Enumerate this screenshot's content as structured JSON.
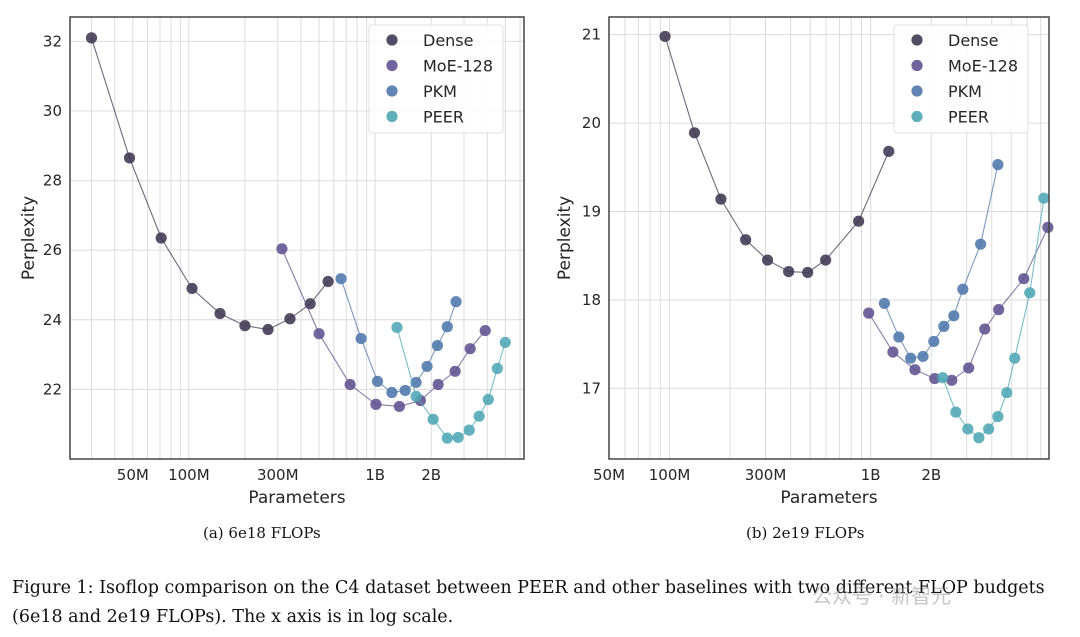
{
  "figure": {
    "caption_label": "Figure 1:",
    "caption_text": "Isoflop comparison on the C4 dataset between PEER and other baselines with two different FLOP budgets (6e18 and 2e19 FLOPs). The x axis is in log scale.",
    "watermark": "公众号 · 新智元"
  },
  "colors": {
    "Dense": "#3f3851",
    "MoE-128": "#5e528f",
    "PKM": "#4f77ab",
    "PEER": "#4ea7b5"
  },
  "chart_data": [
    {
      "type": "line",
      "subcaption": "(a) 6e18 FLOPs",
      "xlabel": "Parameters",
      "ylabel": "Perplexity",
      "xscale": "log",
      "xlim_params_M": [
        23,
        6300
      ],
      "ylim": [
        20.0,
        32.7
      ],
      "xticks": [
        {
          "value_M": 50,
          "label": "50M"
        },
        {
          "value_M": 100,
          "label": "100M"
        },
        {
          "value_M": 300,
          "label": "300M"
        },
        {
          "value_M": 1000,
          "label": "1B"
        },
        {
          "value_M": 2000,
          "label": "2B"
        }
      ],
      "yticks": [
        22,
        24,
        26,
        28,
        30,
        32
      ],
      "grid": true,
      "legend_position": "top-right",
      "legend": [
        "Dense",
        "MoE-128",
        "PKM",
        "PEER"
      ],
      "series": [
        {
          "name": "Dense",
          "params_M": [
            30,
            48,
            71,
            104,
            147,
            200,
            266,
            349,
            448,
            559
          ],
          "perplexity": [
            32.1,
            28.65,
            26.35,
            24.9,
            24.18,
            23.83,
            23.72,
            24.03,
            24.46,
            25.1
          ]
        },
        {
          "name": "MoE-128",
          "params_M": [
            316,
            500,
            734,
            1010,
            1350,
            1750,
            2180,
            2690,
            3240,
            3900
          ],
          "perplexity": [
            26.04,
            23.6,
            22.14,
            21.57,
            21.51,
            21.68,
            22.14,
            22.52,
            23.17,
            23.69
          ]
        },
        {
          "name": "PKM",
          "params_M": [
            656,
            841,
            1030,
            1230,
            1450,
            1660,
            1900,
            2160,
            2440,
            2720
          ],
          "perplexity": [
            25.18,
            23.46,
            22.23,
            21.91,
            21.97,
            22.2,
            22.66,
            23.26,
            23.8,
            24.52
          ]
        },
        {
          "name": "PEER",
          "params_M": [
            1310,
            1660,
            2050,
            2440,
            2790,
            3200,
            3620,
            4050,
            4530,
            5000
          ],
          "perplexity": [
            23.78,
            21.8,
            21.14,
            20.6,
            20.62,
            20.83,
            21.23,
            21.71,
            22.6,
            23.35
          ]
        }
      ]
    },
    {
      "type": "line",
      "subcaption": "(b) 2e19 FLOPs",
      "xlabel": "Parameters",
      "ylabel": "Perplexity",
      "xscale": "log",
      "xlim_params_M": [
        50,
        7700
      ],
      "ylim": [
        16.2,
        21.2
      ],
      "xticks": [
        {
          "value_M": 50,
          "label": "50M"
        },
        {
          "value_M": 100,
          "label": "100M"
        },
        {
          "value_M": 300,
          "label": "300M"
        },
        {
          "value_M": 1000,
          "label": "1B"
        },
        {
          "value_M": 2000,
          "label": "2B"
        }
      ],
      "yticks": [
        17,
        18,
        19,
        20,
        21
      ],
      "grid": true,
      "legend_position": "top-right",
      "legend": [
        "Dense",
        "MoE-128",
        "PKM",
        "PEER"
      ],
      "series": [
        {
          "name": "Dense",
          "params_M": [
            95,
            133,
            180,
            239,
            307,
            391,
            486,
            597,
            871,
            1230
          ],
          "perplexity": [
            20.98,
            19.89,
            19.14,
            18.68,
            18.45,
            18.32,
            18.31,
            18.45,
            18.89,
            19.68
          ]
        },
        {
          "name": "MoE-128",
          "params_M": [
            977,
            1290,
            1660,
            2080,
            2530,
            3070,
            3690,
            4330,
            5770,
            7600
          ],
          "perplexity": [
            17.85,
            17.41,
            17.21,
            17.11,
            17.09,
            17.23,
            17.67,
            17.89,
            18.24,
            18.82
          ]
        },
        {
          "name": "PKM",
          "params_M": [
            1170,
            1380,
            1580,
            1820,
            2060,
            2310,
            2590,
            2870,
            3520,
            4290
          ],
          "perplexity": [
            17.96,
            17.58,
            17.34,
            17.36,
            17.53,
            17.7,
            17.82,
            18.12,
            18.63,
            19.53
          ]
        },
        {
          "name": "PEER",
          "params_M": [
            2280,
            2650,
            3040,
            3450,
            3860,
            4290,
            4750,
            5200,
            6180,
            7260
          ],
          "perplexity": [
            17.12,
            16.73,
            16.54,
            16.44,
            16.54,
            16.68,
            16.95,
            17.34,
            18.08,
            19.15
          ]
        }
      ]
    }
  ]
}
